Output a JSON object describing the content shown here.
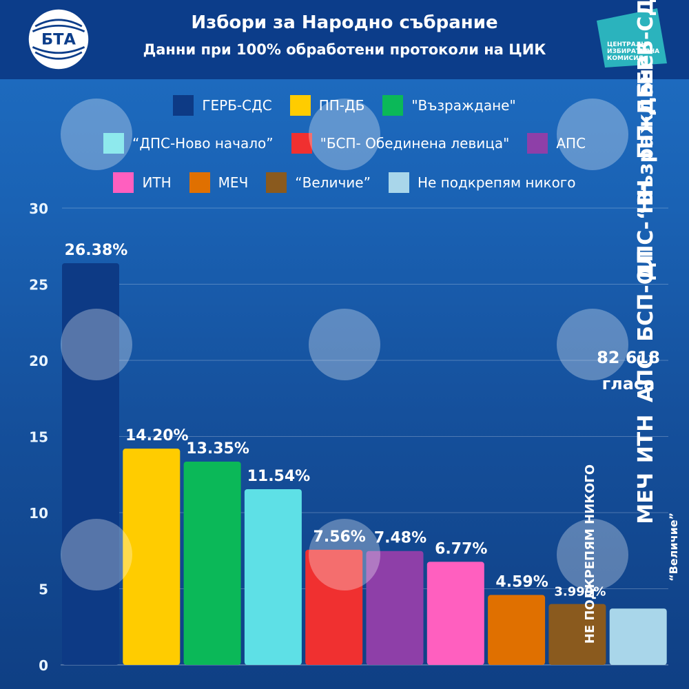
{
  "header": {
    "title": "Избори за Народно събрание",
    "subtitle": "Данни при 100% обработени протоколи на ЦИК",
    "logo_left": "БТА",
    "logo_right_lines": [
      "ЦЕНТРАЛНА",
      "ИЗБИРАТЕЛНА",
      "КОМИСИЯ"
    ]
  },
  "colors": {
    "header_bg": "#0c3d8a",
    "cik_logo": "#2bb3bd"
  },
  "legend": [
    [
      {
        "label": "ГЕРБ-СДС",
        "color": "#0d3a85"
      },
      {
        "label": "ПП-ДБ",
        "color": "#ffcc00"
      },
      {
        "label": "\"Възраждане\"",
        "color": "#0bb858"
      }
    ],
    [
      {
        "label": "“ДПС-Ново начало”",
        "color": "#5ee0e6"
      },
      {
        "label": "\"БСП- Обединена левица\"",
        "color": "#f03030"
      },
      {
        "label": "АПС",
        "color": "#8e3fa8"
      }
    ],
    [
      {
        "label": "ИТН",
        "color": "#ff5fbf"
      },
      {
        "label": "МЕЧ",
        "color": "#e07000"
      },
      {
        "label": "“Величие”",
        "color": "#8a5a1e"
      },
      {
        "label": "Не подкрепям никого",
        "color": "#a9d6ea"
      }
    ]
  ],
  "chart_data": {
    "type": "bar",
    "title": "Избори за Народно събрание",
    "subtitle": "Данни при 100% обработени протоколи на ЦИК",
    "xlabel": "",
    "ylabel": "",
    "ylim": [
      0,
      30
    ],
    "yticks": [
      0,
      5,
      10,
      15,
      20,
      25,
      30
    ],
    "grid": true,
    "legend_position": "top",
    "categories": [
      "ГЕРБ-СДС",
      "ПП-ДБ",
      "“Възраждане”",
      "ДПС- НН",
      "БСП-ОЛ",
      "АПС",
      "ИТН",
      "МЕЧ",
      "“Величие”",
      "НЕ ПОДКРЕПЯМ НИКОГО"
    ],
    "values": [
      26.38,
      14.2,
      13.35,
      11.54,
      7.56,
      7.48,
      6.77,
      4.59,
      3.999,
      3.7
    ],
    "data_labels": [
      "26.38%",
      "14.20%",
      "13.35%",
      "11.54%",
      "7.56%",
      "7.48%",
      "6.77%",
      "4.59%",
      "3.999%",
      ""
    ],
    "colors": [
      "#0d3a85",
      "#ffcc00",
      "#0bb858",
      "#5ee0e6",
      "#f03030",
      "#8e3fa8",
      "#ff5fbf",
      "#e07000",
      "#8a5a1e",
      "#a9d6ea"
    ],
    "label_colors": [
      "#ffffff",
      "#ffffff",
      "#ffffff",
      "#ffffff",
      "#ffffff",
      "#ffffff",
      "#ffffff",
      "#ffffff",
      "#ffffff",
      "#ffffff"
    ],
    "annotation": {
      "line1": "82 618",
      "line2": "гласа"
    }
  }
}
